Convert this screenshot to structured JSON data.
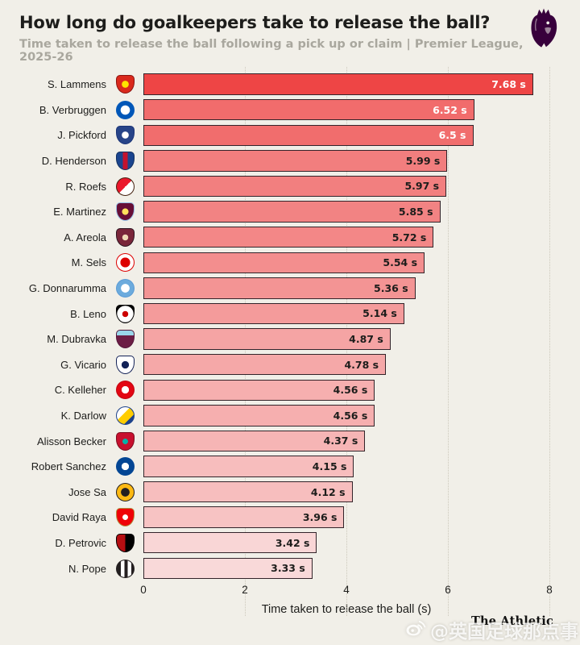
{
  "header": {
    "title": "How long do goalkeepers take to release the ball?",
    "subtitle": "Time taken to release the ball following a pick up or claim | Premier League, 2025-26",
    "logo": "premier-league-lion-icon",
    "logo_color": "#38003c"
  },
  "chart_data": {
    "type": "bar",
    "orientation": "horizontal",
    "title": "How long do goalkeepers take to release the ball?",
    "xlabel": "Time taken to release the ball (s)",
    "xlim": [
      0,
      8
    ],
    "xticks": [
      "0",
      "2",
      "4",
      "6",
      "8"
    ],
    "grid": "vertical-dotted",
    "gridline_color": "#ccc8bb",
    "bar_border_color": "#33242a",
    "players": [
      {
        "name": "S. Lammens",
        "team": "Manchester United",
        "value": 7.68,
        "label": "7.68 s",
        "bar_color": "#ee4545",
        "label_color": "#ffffff",
        "crest": {
          "shape": "shield",
          "bg": "radial-gradient(circle, #ffe500 0 28%, #da291c 30%)",
          "border": "#8a1410"
        }
      },
      {
        "name": "B. Verbruggen",
        "team": "Brighton & Hove Albion",
        "value": 6.52,
        "label": "6.52 s",
        "bar_color": "#f16c6c",
        "label_color": "#ffffff",
        "crest": {
          "shape": "circle",
          "bg": "radial-gradient(circle, #ffffff 0 38%, #0057b8 40%)",
          "border": "#0057b8"
        }
      },
      {
        "name": "J. Pickford",
        "team": "Everton",
        "value": 6.5,
        "label": "6.5 s",
        "bar_color": "#f16d6d",
        "label_color": "#ffffff",
        "crest": {
          "shape": "shield",
          "bg": "radial-gradient(circle, #ffffff 0 28%, #274488 30%)",
          "border": "#1b3477"
        }
      },
      {
        "name": "D. Henderson",
        "team": "Crystal Palace",
        "value": 5.99,
        "label": "5.99 s",
        "bar_color": "#f27e7e",
        "label_color": "#1d1d1b",
        "crest": {
          "shape": "shield",
          "bg": "linear-gradient(90deg, #1b458f 0 35%, #c4122e 35% 65%, #1b458f 65%)",
          "border": "#12305f"
        }
      },
      {
        "name": "R. Roefs",
        "team": "Sunderland",
        "value": 5.97,
        "label": "5.97 s",
        "bar_color": "#f27f7f",
        "label_color": "#1d1d1b",
        "crest": {
          "shape": "circle",
          "bg": "linear-gradient(135deg, #eb172b 0 50%, #ffffff 50%)",
          "border": "#43210f"
        }
      },
      {
        "name": "E. Martinez",
        "team": "Aston Villa",
        "value": 5.85,
        "label": "5.85 s",
        "bar_color": "#f28383",
        "label_color": "#1d1d1b",
        "crest": {
          "shape": "shield",
          "bg": "radial-gradient(circle, #ffe05c 0 26%, #670e36 28%)",
          "border": "#95bfe5"
        }
      },
      {
        "name": "A. Areola",
        "team": "West Ham United",
        "value": 5.72,
        "label": "5.72 s",
        "bar_color": "#f38787",
        "label_color": "#1d1d1b",
        "crest": {
          "shape": "shield",
          "bg": "radial-gradient(circle, #f0d9b5 0 24%, #7a263a 26%)",
          "border": "#2d1420"
        }
      },
      {
        "name": "M. Sels",
        "team": "Nottingham Forest",
        "value": 5.54,
        "label": "5.54 s",
        "bar_color": "#f38e8e",
        "label_color": "#1d1d1b",
        "crest": {
          "shape": "circle",
          "bg": "radial-gradient(circle, #dd0000 0 40%, #ffffff 42%)",
          "border": "#dd0000"
        }
      },
      {
        "name": "G. Donnarumma",
        "team": "Manchester City",
        "value": 5.36,
        "label": "5.36 s",
        "bar_color": "#f39494",
        "label_color": "#1d1d1b",
        "crest": {
          "shape": "circle",
          "bg": "radial-gradient(circle, #ffffff 0 35%, #6cabdd 37%)",
          "border": "#5b9bd5"
        }
      },
      {
        "name": "B. Leno",
        "team": "Fulham",
        "value": 5.14,
        "label": "5.14 s",
        "bar_color": "#f49b9b",
        "label_color": "#1d1d1b",
        "crest": {
          "shape": "shield",
          "bg": "radial-gradient(circle, #cc0000 0 24%, #ffffff 26% 68%, #000000 70%)",
          "border": "#000000"
        }
      },
      {
        "name": "M. Dubravka",
        "team": "Burnley",
        "value": 4.87,
        "label": "4.87 s",
        "bar_color": "#f5a4a4",
        "label_color": "#1d1d1b",
        "crest": {
          "shape": "shield",
          "bg": "linear-gradient(180deg, #99d6ea 0 28%, #6c1d45 28%)",
          "border": "#53163a"
        }
      },
      {
        "name": "G. Vicario",
        "team": "Tottenham Hotspur",
        "value": 4.78,
        "label": "4.78 s",
        "bar_color": "#f5a8a8",
        "label_color": "#1d1d1b",
        "crest": {
          "shape": "shield",
          "bg": "radial-gradient(circle, #132257 0 30%, #ffffff 32%)",
          "border": "#132257"
        }
      },
      {
        "name": "C. Kelleher",
        "team": "Brentford",
        "value": 4.56,
        "label": "4.56 s",
        "bar_color": "#f6afaf",
        "label_color": "#1d1d1b",
        "crest": {
          "shape": "circle",
          "bg": "radial-gradient(circle, #ffffff 0 30%, #e30613 32%)",
          "border": "#c00510"
        }
      },
      {
        "name": "K. Darlow",
        "team": "Leeds United",
        "value": 4.56,
        "label": "4.56 s",
        "bar_color": "#f6afaf",
        "label_color": "#1d1d1b",
        "crest": {
          "shape": "circle",
          "bg": "linear-gradient(135deg, #ffffff 0 40%, #ffcd00 40% 72%, #1d428a 72%)",
          "border": "#1d428a"
        }
      },
      {
        "name": "Alisson Becker",
        "team": "Liverpool",
        "value": 4.37,
        "label": "4.37 s",
        "bar_color": "#f6b5b5",
        "label_color": "#1d1d1b",
        "crest": {
          "shape": "shield",
          "bg": "radial-gradient(circle, #00b2a9 0 22%, #c8102e 24%)",
          "border": "#7a0c1e"
        }
      },
      {
        "name": "Robert Sanchez",
        "team": "Chelsea",
        "value": 4.15,
        "label": "4.15 s",
        "bar_color": "#f7bdbd",
        "label_color": "#1d1d1b",
        "crest": {
          "shape": "circle",
          "bg": "radial-gradient(circle, #ffffff 0 30%, #034694 32%)",
          "border": "#034694"
        }
      },
      {
        "name": "Jose Sa",
        "team": "Wolverhampton Wanderers",
        "value": 4.12,
        "label": "4.12 s",
        "bar_color": "#f7bebe",
        "label_color": "#1d1d1b",
        "crest": {
          "shape": "circle",
          "bg": "radial-gradient(circle, #231f20 0 35%, #fdb913 37%)",
          "border": "#231f20"
        }
      },
      {
        "name": "David Raya",
        "team": "Arsenal",
        "value": 3.96,
        "label": "3.96 s",
        "bar_color": "#f7c3c3",
        "label_color": "#1d1d1b",
        "crest": {
          "shape": "shield",
          "bg": "radial-gradient(circle, #ffffff 0 22%, #ef0107 24%)",
          "border": "#b08d3f"
        }
      },
      {
        "name": "D. Petrovic",
        "team": "AFC Bournemouth",
        "value": 3.42,
        "label": "3.42 s",
        "bar_color": "#f9d6d6",
        "label_color": "#1d1d1b",
        "crest": {
          "shape": "shield",
          "bg": "linear-gradient(90deg, #b50e12 0 50%, #000000 50%)",
          "border": "#000000"
        }
      },
      {
        "name": "N. Pope",
        "team": "Newcastle United",
        "value": 3.33,
        "label": "3.33 s",
        "bar_color": "#f9d9d9",
        "label_color": "#1d1d1b",
        "crest": {
          "shape": "circle",
          "bg": "linear-gradient(90deg, #241f20 0 25%, #ffffff 25% 45%, #241f20 45% 65%, #ffffff 65% 85%, #241f20 85%)",
          "border": "#241f20"
        }
      }
    ]
  },
  "footer": {
    "brand": "The Athletic",
    "watermark": "@英国足球那点事",
    "watermark_icon": "weibo-icon"
  }
}
